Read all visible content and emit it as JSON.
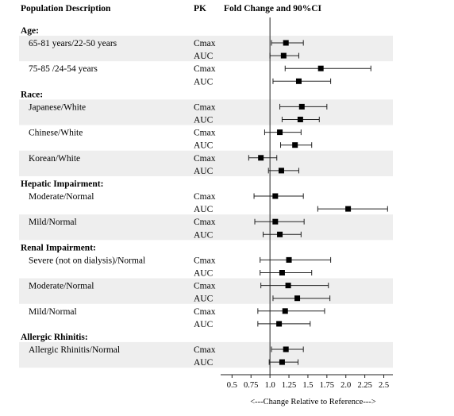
{
  "chart_data": {
    "type": "forest",
    "headers": {
      "description": "Population Description",
      "pk": "PK",
      "estimate": "Fold Change and 90%CI"
    },
    "xlabel": "<---Change Relative to Reference--->",
    "xlim": [
      0.35,
      2.62
    ],
    "xticks": [
      "0.5",
      "0.75",
      "1.0",
      "1.25",
      "1.5",
      "1.75",
      "2.0",
      "2.25",
      "2.5"
    ],
    "reference_line": 1.0,
    "shaded_color": "#eeeeee",
    "groups": [
      {
        "title": "Age:",
        "comparisons": [
          {
            "label": "65-81 years/22-50  years",
            "shaded": true,
            "rows": [
              {
                "pk": "Cmax",
                "estimate": 1.21,
                "lower": 1.02,
                "upper": 1.44
              },
              {
                "pk": "AUC",
                "estimate": 1.18,
                "lower": 1.0,
                "upper": 1.38
              }
            ]
          },
          {
            "label": "75-85 /24-54 years",
            "shaded": false,
            "rows": [
              {
                "pk": "Cmax",
                "estimate": 1.67,
                "lower": 1.2,
                "upper": 2.33
              },
              {
                "pk": "AUC",
                "estimate": 1.38,
                "lower": 1.04,
                "upper": 1.8
              }
            ]
          }
        ]
      },
      {
        "title": "Race:",
        "comparisons": [
          {
            "label": "Japanese/White",
            "shaded": true,
            "rows": [
              {
                "pk": "Cmax",
                "estimate": 1.42,
                "lower": 1.13,
                "upper": 1.75
              },
              {
                "pk": "AUC",
                "estimate": 1.4,
                "lower": 1.16,
                "upper": 1.65
              }
            ]
          },
          {
            "label": "Chinese/White",
            "shaded": false,
            "rows": [
              {
                "pk": "Cmax",
                "estimate": 1.13,
                "lower": 0.93,
                "upper": 1.41
              },
              {
                "pk": "AUC",
                "estimate": 1.33,
                "lower": 1.14,
                "upper": 1.55
              }
            ]
          },
          {
            "label": "Korean/White",
            "shaded": true,
            "rows": [
              {
                "pk": "Cmax",
                "estimate": 0.88,
                "lower": 0.72,
                "upper": 1.09
              },
              {
                "pk": "AUC",
                "estimate": 1.15,
                "lower": 0.98,
                "upper": 1.38
              }
            ]
          }
        ]
      },
      {
        "title": "Hepatic Impairment:",
        "comparisons": [
          {
            "label": "Moderate/Normal",
            "shaded": false,
            "rows": [
              {
                "pk": "Cmax",
                "estimate": 1.07,
                "lower": 0.79,
                "upper": 1.44
              },
              {
                "pk": "AUC",
                "estimate": 2.03,
                "lower": 1.63,
                "upper": 2.55
              }
            ]
          },
          {
            "label": "Mild/Normal",
            "shaded": true,
            "rows": [
              {
                "pk": "Cmax",
                "estimate": 1.07,
                "lower": 0.8,
                "upper": 1.45
              },
              {
                "pk": "AUC",
                "estimate": 1.13,
                "lower": 0.91,
                "upper": 1.41
              }
            ]
          }
        ]
      },
      {
        "title": "Renal Impairment:",
        "comparisons": [
          {
            "label": "Severe (not on dialysis)/Normal",
            "shaded": false,
            "rows": [
              {
                "pk": "Cmax",
                "estimate": 1.25,
                "lower": 0.87,
                "upper": 1.8
              },
              {
                "pk": "AUC",
                "estimate": 1.16,
                "lower": 0.87,
                "upper": 1.55
              }
            ]
          },
          {
            "label": "Moderate/Normal",
            "shaded": true,
            "rows": [
              {
                "pk": "Cmax",
                "estimate": 1.24,
                "lower": 0.88,
                "upper": 1.77
              },
              {
                "pk": "AUC",
                "estimate": 1.36,
                "lower": 1.04,
                "upper": 1.79
              }
            ]
          },
          {
            "label": "Mild/Normal",
            "shaded": false,
            "rows": [
              {
                "pk": "Cmax",
                "estimate": 1.2,
                "lower": 0.84,
                "upper": 1.72
              },
              {
                "pk": "AUC",
                "estimate": 1.12,
                "lower": 0.84,
                "upper": 1.53
              }
            ]
          }
        ]
      },
      {
        "title": "Allergic Rhinitis:",
        "comparisons": [
          {
            "label": "Allergic Rhinitis/Normal",
            "shaded": true,
            "rows": [
              {
                "pk": "Cmax",
                "estimate": 1.21,
                "lower": 1.02,
                "upper": 1.44
              },
              {
                "pk": "AUC",
                "estimate": 1.16,
                "lower": 0.99,
                "upper": 1.37
              }
            ]
          }
        ]
      }
    ]
  }
}
